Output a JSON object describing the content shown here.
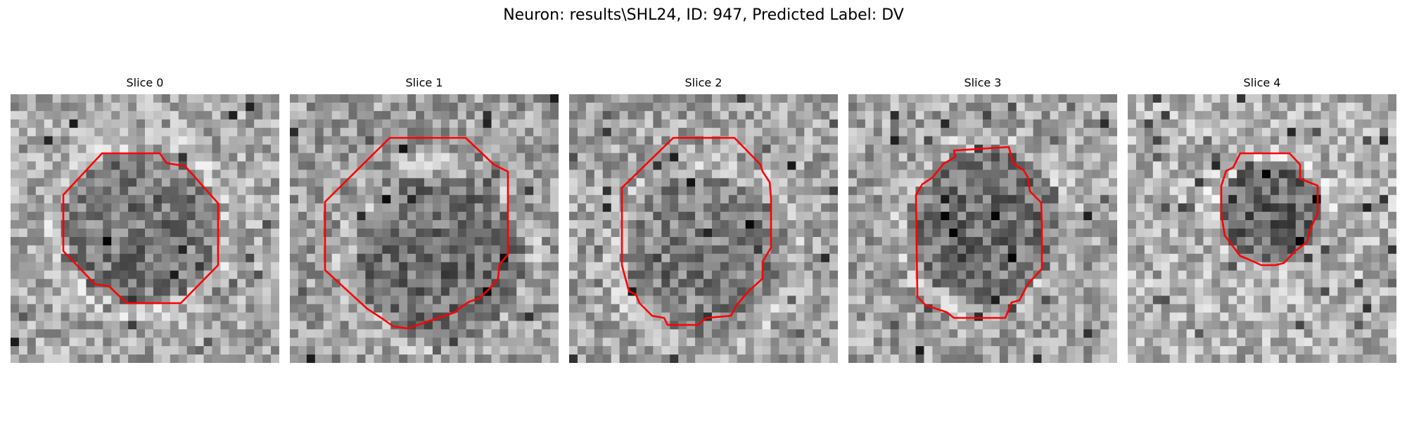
{
  "figure": {
    "title": "Neuron: results\\SHL24, ID: 947, Predicted Label: DV"
  },
  "panels": [
    {
      "title": "Slice 0",
      "seed": 11,
      "cell_darkness": 0.45,
      "background": 0.66
    },
    {
      "title": "Slice 1",
      "seed": 23,
      "cell_darkness": 0.42,
      "background": 0.62
    },
    {
      "title": "Slice 2",
      "seed": 37,
      "cell_darkness": 0.48,
      "background": 0.64
    },
    {
      "title": "Slice 3",
      "seed": 51,
      "cell_darkness": 0.42,
      "background": 0.64
    },
    {
      "title": "Slice 4",
      "seed": 67,
      "cell_darkness": 0.38,
      "background": 0.7
    }
  ],
  "colors": {
    "outline": "#ff0000",
    "background": "#ffffff"
  }
}
